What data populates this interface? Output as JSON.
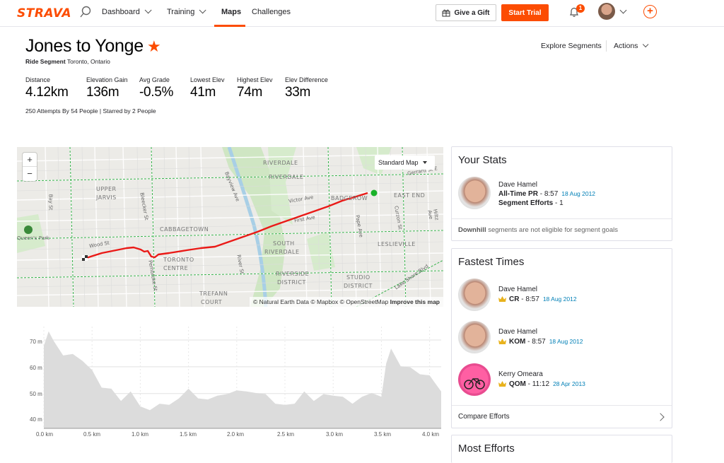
{
  "nav": {
    "logo": "STRAVA",
    "items": [
      "Dashboard",
      "Training",
      "Maps",
      "Challenges"
    ],
    "active": "Maps",
    "gift_label": "Give a Gift",
    "trial_label": "Start Trial",
    "notification_count": "1",
    "accent": "#fc4c02"
  },
  "header": {
    "title": "Jones to Yonge",
    "segment_type": "Ride Segment",
    "location": "Toronto, Ontario",
    "explore_label": "Explore Segments",
    "actions_label": "Actions"
  },
  "stats": [
    {
      "label": "Distance",
      "value": "4.12km"
    },
    {
      "label": "Elevation Gain",
      "value": "136m"
    },
    {
      "label": "Avg Grade",
      "value": "-0.5%"
    },
    {
      "label": "Lowest Elev",
      "value": "41m"
    },
    {
      "label": "Highest Elev",
      "value": "74m"
    },
    {
      "label": "Elev Difference",
      "value": "33m"
    }
  ],
  "attempts": "250 Attempts By 54 People | Starred by 2 People",
  "map": {
    "style_label": "Standard Map",
    "attribution_prefix": "© Natural Earth Data © Mapbox © OpenStreetMap",
    "attribution_link": "Improve this map",
    "labels": [
      "RIVERDALE",
      "RIVERDALE",
      "UPPER",
      "JARVIS",
      "CABBAGETOWN",
      "SOUTH",
      "RIVERDALE",
      "TORONTO",
      "CENTRE",
      "RIVERSIDE",
      "DISTRICT",
      "STUDIO",
      "DISTRICT",
      "TREFANN",
      "COURT",
      "EAST END",
      "LESLIEVILLE",
      "BADGEROW",
      "Queen's Park",
      "Gerrard St E",
      "Victor Ave",
      "First Ave",
      "Wood St",
      "Bay St",
      "Bleecker St",
      "Pembroke St",
      "River St",
      "Bayview Ave",
      "Pape Ave",
      "Curzon St",
      "Hiltz Ave",
      "Lake Shore Blvd"
    ]
  },
  "elevation_chart": {
    "y_ticks": [
      "70 m",
      "60 m",
      "50 m",
      "40 m"
    ],
    "x_ticks": [
      "0.0 km",
      "0.5 km",
      "1.0 km",
      "1.5 km",
      "2.0 km",
      "2.5 km",
      "3.0 km",
      "3.5 km",
      "4.0 km"
    ]
  },
  "chart_data": {
    "type": "area",
    "xlabel": "",
    "ylabel": "",
    "xlim": [
      0,
      4.12
    ],
    "ylim": [
      37,
      75
    ],
    "x": [
      0.0,
      0.05,
      0.1,
      0.2,
      0.3,
      0.4,
      0.5,
      0.6,
      0.7,
      0.8,
      0.9,
      1.0,
      1.1,
      1.2,
      1.3,
      1.4,
      1.5,
      1.6,
      1.7,
      1.8,
      1.9,
      2.0,
      2.1,
      2.2,
      2.3,
      2.4,
      2.5,
      2.6,
      2.7,
      2.8,
      2.9,
      3.0,
      3.1,
      3.2,
      3.3,
      3.4,
      3.5,
      3.55,
      3.6,
      3.7,
      3.8,
      3.9,
      4.0,
      4.05,
      4.12
    ],
    "series": [
      {
        "values": [
          67,
          74,
          69,
          65,
          64,
          63,
          58,
          53,
          51,
          48,
          50,
          46,
          43,
          47,
          45,
          49,
          51,
          49,
          47,
          50,
          49,
          52,
          50,
          51,
          49,
          47,
          45,
          47,
          50,
          48,
          49,
          50,
          48,
          47,
          48,
          51,
          48,
          62,
          66,
          61,
          59,
          58,
          56,
          55,
          50
        ]
      }
    ],
    "grid": true
  },
  "your_stats": {
    "title": "Your Stats",
    "name": "Dave Hamel",
    "pr_label": "All-Time PR",
    "pr_value": " - 8:57",
    "pr_date": "18 Aug 2012",
    "efforts_label": "Segment Efforts",
    "efforts_value": " - 1",
    "note_bold": "Downhill",
    "note_rest": " segments are not eligible for segment goals"
  },
  "fastest_times": {
    "title": "Fastest Times",
    "entries": [
      {
        "name": "Dave Hamel",
        "rank": "CR",
        "time": " - 8:57",
        "date": "18 Aug 2012"
      },
      {
        "name": "Dave Hamel",
        "rank": "KOM",
        "time": " - 8:57",
        "date": "18 Aug 2012"
      },
      {
        "name": "Kerry Omeara",
        "rank": "QOM",
        "time": " - 11:12",
        "date": "28 Apr 2013"
      }
    ],
    "compare_label": "Compare Efforts"
  },
  "most_efforts": {
    "title": "Most Efforts"
  }
}
